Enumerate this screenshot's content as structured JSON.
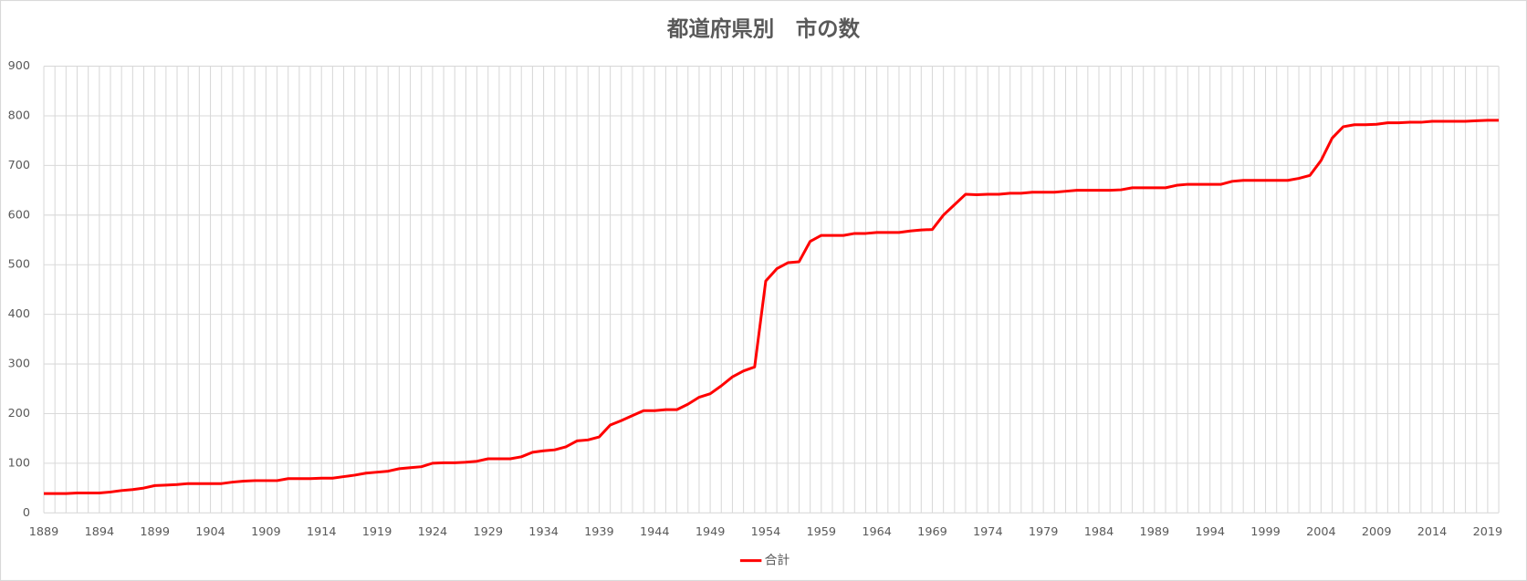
{
  "chart_data": {
    "type": "line",
    "title": "都道府県別　市の数",
    "categories": [
      1889,
      null,
      null,
      null,
      null,
      1894,
      null,
      null,
      null,
      null,
      1899,
      null,
      null,
      null,
      null,
      1904,
      null,
      null,
      null,
      null,
      1909,
      null,
      null,
      null,
      null,
      1914,
      null,
      null,
      null,
      null,
      1919,
      null,
      null,
      null,
      null,
      1924,
      null,
      null,
      null,
      null,
      1929,
      null,
      null,
      null,
      null,
      1934,
      null,
      null,
      null,
      null,
      1939,
      null,
      null,
      null,
      null,
      1944,
      null,
      null,
      null,
      null,
      1949,
      null,
      null,
      null,
      null,
      1954,
      null,
      null,
      null,
      null,
      1959,
      null,
      null,
      null,
      null,
      1964,
      null,
      null,
      null,
      null,
      1969,
      null,
      null,
      null,
      null,
      1974,
      null,
      null,
      null,
      null,
      1979,
      null,
      null,
      null,
      null,
      1984,
      null,
      null,
      null,
      null,
      1989,
      null,
      null,
      null,
      null,
      1994,
      null,
      null,
      null,
      null,
      1999,
      null,
      null,
      null,
      null,
      2004,
      null,
      null,
      null,
      null,
      2009,
      null,
      null,
      null,
      null,
      2014,
      null,
      null,
      null,
      null,
      2019,
      null
    ],
    "series": [
      {
        "name": "合計",
        "color": "#ff0000",
        "values": [
          39,
          39,
          39,
          40,
          40,
          40,
          42,
          45,
          47,
          50,
          55,
          56,
          57,
          59,
          59,
          59,
          59,
          62,
          64,
          65,
          65,
          65,
          69,
          69,
          69,
          70,
          70,
          73,
          76,
          80,
          82,
          84,
          89,
          91,
          93,
          100,
          101,
          101,
          102,
          104,
          109,
          109,
          109,
          113,
          122,
          125,
          127,
          133,
          145,
          147,
          153,
          177,
          186,
          196,
          206,
          206,
          208,
          208,
          219,
          233,
          240,
          256,
          274,
          286,
          294,
          467,
          492,
          504,
          506,
          547,
          559,
          559,
          559,
          563,
          563,
          565,
          565,
          565,
          568,
          570,
          571,
          600,
          621,
          642,
          641,
          642,
          642,
          644,
          644,
          646,
          646,
          646,
          648,
          650,
          650,
          650,
          650,
          651,
          655,
          655,
          655,
          655,
          660,
          662,
          662,
          662,
          662,
          668,
          670,
          670,
          670,
          670,
          670,
          674,
          680,
          710,
          755,
          778,
          782,
          782,
          783,
          786,
          786,
          787,
          787,
          789,
          789,
          789,
          789,
          790,
          791,
          791
        ]
      }
    ],
    "ylim": [
      0,
      900
    ],
    "yticks": [
      0,
      100,
      200,
      300,
      400,
      500,
      600,
      700,
      800,
      900
    ],
    "grid": true,
    "legend": "bottom"
  }
}
